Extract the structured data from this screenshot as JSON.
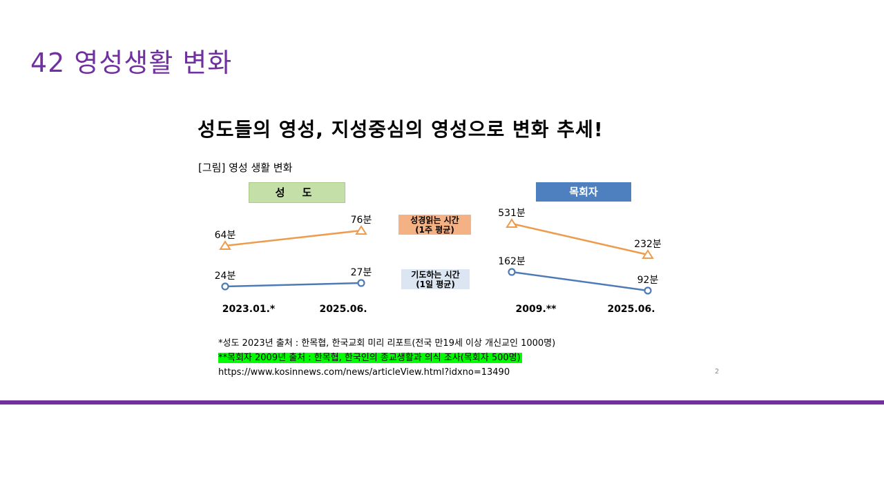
{
  "slide": {
    "title": "42 영성생활 변화",
    "headline": "성도들의 영성, 지성중심의 영성으로 변화 추세!",
    "figure_caption": "[그림] 영성 생활 변화"
  },
  "colors": {
    "title_purple": "#7030A0",
    "bible_line": "#ED9B4D",
    "prayer_line": "#4E7AB5",
    "saints_label_bg": "#C5DFA8",
    "pastors_label_bg": "#4E7FBF",
    "bible_label_bg": "#F4B183",
    "prayer_label_bg": "#DCE6F2",
    "highlight": "#00FF00"
  },
  "chart_data": [
    {
      "type": "line",
      "group": "성 도",
      "categories": [
        "2023.01.*",
        "2025.06."
      ],
      "series": [
        {
          "name": "성경읽는 시간 (1주 평균)",
          "values": [
            64,
            76
          ],
          "labels": [
            "64분",
            "76분"
          ],
          "marker": "triangle"
        },
        {
          "name": "기도하는 시간 (1일 평균)",
          "values": [
            24,
            27
          ],
          "labels": [
            "24분",
            "27분"
          ],
          "marker": "circle"
        }
      ]
    },
    {
      "type": "line",
      "group": "목회자",
      "categories": [
        "2009.**",
        "2025.06."
      ],
      "series": [
        {
          "name": "성경읽는 시간 (1주 평균)",
          "values": [
            531,
            232
          ],
          "labels": [
            "531분",
            "232분"
          ],
          "marker": "triangle"
        },
        {
          "name": "기도하는 시간 (1일 평균)",
          "values": [
            162,
            92
          ],
          "labels": [
            "162분",
            "92분"
          ],
          "marker": "circle"
        }
      ]
    }
  ],
  "metric_labels": {
    "bible_line1": "성경읽는 시간",
    "bible_line2": "(1주 평균)",
    "prayer_line1": "기도하는 시간",
    "prayer_line2": "(1일 평균)"
  },
  "sources": {
    "saints": "*성도 2023년 출처 : 한목협, 한국교회 미리 리포트(전국 만19세 이상 개신교인 1000명)",
    "pastors": "**목회자 2009년 출처 : 한목협, 한국인의 종교생활과 의식 조사(목회자 500명)",
    "url": "https://www.kosinnews.com/news/articleView.html?idxno=13490"
  },
  "page_number": "2"
}
